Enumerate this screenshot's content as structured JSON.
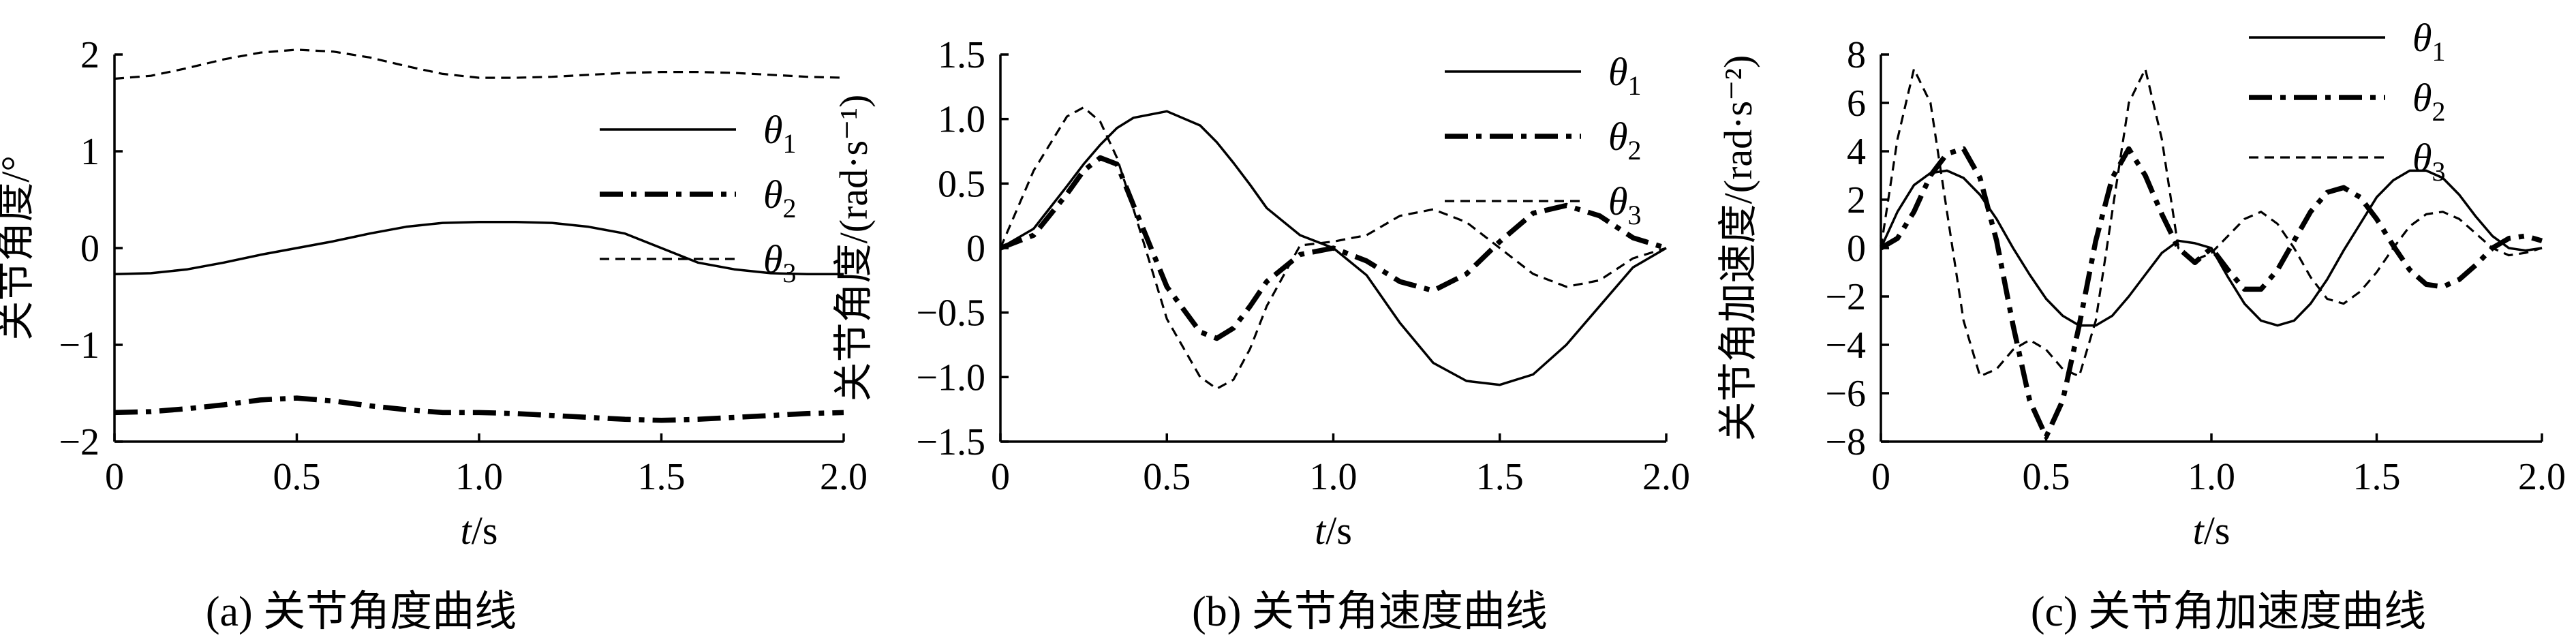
{
  "chart_data": [
    {
      "type": "line",
      "caption": "(a) 关节角度曲线",
      "xlabel_italic": "t",
      "xlabel_rest": "/s",
      "ylabel": "关节角度/°",
      "xlim": [
        0,
        2.0
      ],
      "ylim": [
        -2,
        2
      ],
      "x_ticks": [
        0,
        0.5,
        1.0,
        1.5,
        2.0
      ],
      "x_tick_labels": [
        "0",
        "0.5",
        "1.0",
        "1.5",
        "2.0"
      ],
      "y_ticks": [
        2,
        1,
        0,
        -1,
        -2
      ],
      "y_tick_labels": [
        "2",
        "1",
        "0",
        "−1",
        "−2"
      ],
      "legend_placement": "right",
      "x": [
        0,
        0.1,
        0.2,
        0.3,
        0.4,
        0.5,
        0.6,
        0.7,
        0.8,
        0.9,
        1.0,
        1.1,
        1.2,
        1.3,
        1.4,
        1.5,
        1.6,
        1.7,
        1.8,
        1.9,
        2.0
      ],
      "series": [
        {
          "name": "θ1",
          "style": "solid",
          "values": [
            -0.27,
            -0.26,
            -0.22,
            -0.15,
            -0.07,
            0.0,
            0.07,
            0.15,
            0.22,
            0.26,
            0.27,
            0.27,
            0.26,
            0.22,
            0.15,
            0.0,
            -0.15,
            -0.22,
            -0.26,
            -0.27,
            -0.27
          ]
        },
        {
          "name": "θ2",
          "style": "dashdot",
          "values": [
            -1.7,
            -1.69,
            -1.66,
            -1.62,
            -1.57,
            -1.55,
            -1.58,
            -1.63,
            -1.67,
            -1.7,
            -1.7,
            -1.71,
            -1.73,
            -1.75,
            -1.77,
            -1.78,
            -1.77,
            -1.75,
            -1.73,
            -1.71,
            -1.7
          ]
        },
        {
          "name": "θ3",
          "style": "dashed",
          "values": [
            1.75,
            1.78,
            1.86,
            1.95,
            2.02,
            2.05,
            2.03,
            1.97,
            1.88,
            1.8,
            1.76,
            1.76,
            1.77,
            1.79,
            1.81,
            1.82,
            1.82,
            1.81,
            1.79,
            1.77,
            1.76
          ]
        }
      ]
    },
    {
      "type": "line",
      "caption": "(b) 关节角速度曲线",
      "xlabel_italic": "t",
      "xlabel_rest": "/s",
      "ylabel": "关节角度/(rad·s⁻¹)",
      "xlim": [
        0,
        2.0
      ],
      "ylim": [
        -1.5,
        1.5
      ],
      "x_ticks": [
        0,
        0.5,
        1.0,
        1.5,
        2.0
      ],
      "x_tick_labels": [
        "0",
        "0.5",
        "1.0",
        "1.5",
        "2.0"
      ],
      "y_ticks": [
        1.5,
        1.0,
        0.5,
        0,
        -0.5,
        -1.0,
        -1.5
      ],
      "y_tick_labels": [
        "1.5",
        "1.0",
        "0.5",
        "0",
        "−0.5",
        "−1.0",
        "−1.5"
      ],
      "legend_placement": "top-right",
      "x": [
        0,
        0.1,
        0.2,
        0.25,
        0.3,
        0.35,
        0.4,
        0.5,
        0.6,
        0.65,
        0.7,
        0.75,
        0.8,
        0.9,
        1.0,
        1.1,
        1.2,
        1.3,
        1.4,
        1.5,
        1.6,
        1.7,
        1.8,
        1.9,
        2.0
      ],
      "series": [
        {
          "name": "θ1",
          "style": "solid",
          "values": [
            0,
            0.15,
            0.48,
            0.65,
            0.8,
            0.93,
            1.01,
            1.06,
            0.95,
            0.82,
            0.66,
            0.49,
            0.31,
            0.1,
            0,
            -0.21,
            -0.58,
            -0.89,
            -1.03,
            -1.06,
            -0.98,
            -0.75,
            -0.45,
            -0.15,
            0
          ]
        },
        {
          "name": "θ2",
          "style": "dashdot",
          "values": [
            0,
            0.1,
            0.42,
            0.6,
            0.7,
            0.65,
            0.33,
            -0.3,
            -0.65,
            -0.7,
            -0.62,
            -0.45,
            -0.26,
            -0.05,
            0,
            -0.1,
            -0.26,
            -0.33,
            -0.2,
            0.05,
            0.27,
            0.33,
            0.25,
            0.08,
            0
          ]
        },
        {
          "name": "θ3",
          "style": "dashed",
          "values": [
            0,
            0.6,
            1.02,
            1.09,
            0.98,
            0.7,
            0.3,
            -0.55,
            -1.0,
            -1.09,
            -1.02,
            -0.78,
            -0.45,
            0.02,
            0.05,
            0.1,
            0.25,
            0.3,
            0.2,
            0.0,
            -0.2,
            -0.3,
            -0.25,
            -0.08,
            0
          ]
        }
      ]
    },
    {
      "type": "line",
      "caption": "(c) 关节角加速度曲线",
      "xlabel_italic": "t",
      "xlabel_rest": "/s",
      "ylabel": "关节角加速度/(rad·s⁻²)",
      "xlim": [
        0,
        2.0
      ],
      "ylim": [
        -8,
        8
      ],
      "x_ticks": [
        0,
        0.5,
        1.0,
        1.5,
        2.0
      ],
      "x_tick_labels": [
        "0",
        "0.5",
        "1.0",
        "1.5",
        "2.0"
      ],
      "y_ticks": [
        8,
        6,
        4,
        2,
        0,
        -2,
        -4,
        -6,
        -8
      ],
      "y_tick_labels": [
        "8",
        "6",
        "4",
        "2",
        "0",
        "−2",
        "−4",
        "−6",
        "−8"
      ],
      "legend_placement": "top-right",
      "x": [
        0,
        0.05,
        0.1,
        0.15,
        0.2,
        0.25,
        0.3,
        0.35,
        0.4,
        0.45,
        0.5,
        0.55,
        0.6,
        0.65,
        0.7,
        0.75,
        0.8,
        0.85,
        0.9,
        0.95,
        1.0,
        1.05,
        1.1,
        1.15,
        1.2,
        1.25,
        1.3,
        1.35,
        1.4,
        1.45,
        1.5,
        1.55,
        1.6,
        1.65,
        1.7,
        1.75,
        1.8,
        1.85,
        1.9,
        1.95,
        2.0
      ],
      "series": [
        {
          "name": "θ1",
          "style": "solid",
          "values": [
            0,
            1.5,
            2.6,
            3.1,
            3.2,
            2.9,
            2.2,
            1.2,
            0.0,
            -1.1,
            -2.1,
            -2.8,
            -3.2,
            -3.2,
            -2.8,
            -2.0,
            -1.1,
            -0.2,
            0.3,
            0.2,
            0,
            -1.2,
            -2.3,
            -3.0,
            -3.2,
            -3.0,
            -2.3,
            -1.3,
            -0.1,
            1.0,
            2.1,
            2.8,
            3.2,
            3.2,
            2.9,
            2.2,
            1.3,
            0.5,
            0.0,
            -0.1,
            0
          ]
        },
        {
          "name": "θ2",
          "style": "dashdot",
          "values": [
            0,
            0.4,
            1.5,
            3.0,
            3.9,
            4.1,
            2.9,
            0.3,
            -3.2,
            -6.3,
            -7.8,
            -6.3,
            -3.2,
            0.3,
            2.9,
            4.1,
            3.0,
            1.4,
            0.0,
            -0.6,
            0.0,
            -0.9,
            -1.7,
            -1.7,
            -0.9,
            0.3,
            1.5,
            2.3,
            2.5,
            2.1,
            1.2,
            0.1,
            -0.9,
            -1.5,
            -1.6,
            -1.3,
            -0.7,
            0.0,
            0.4,
            0.5,
            0.3
          ]
        },
        {
          "name": "θ3",
          "style": "dashed",
          "values": [
            0,
            4.5,
            7.4,
            6.0,
            1.5,
            -3.0,
            -5.3,
            -5.0,
            -4.2,
            -3.8,
            -4.2,
            -5.0,
            -5.3,
            -3.0,
            1.5,
            6.0,
            7.4,
            4.5,
            0.0,
            -0.5,
            -0.2,
            0.5,
            1.2,
            1.5,
            1.0,
            0.0,
            -1.2,
            -2.1,
            -2.3,
            -1.8,
            -1.0,
            0.0,
            0.9,
            1.4,
            1.5,
            1.2,
            0.6,
            0.0,
            -0.3,
            -0.2,
            0
          ]
        }
      ]
    }
  ],
  "legend_labels": [
    {
      "sym": "θ",
      "sub": "1"
    },
    {
      "sym": "θ",
      "sub": "2"
    },
    {
      "sym": "θ",
      "sub": "3"
    }
  ]
}
